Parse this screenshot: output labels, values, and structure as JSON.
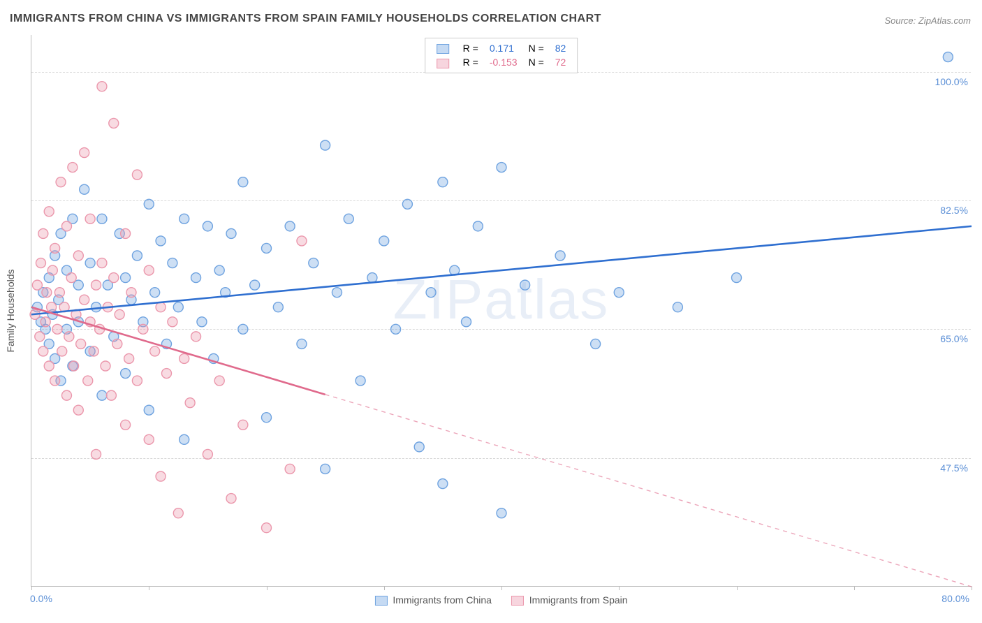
{
  "title": "IMMIGRANTS FROM CHINA VS IMMIGRANTS FROM SPAIN FAMILY HOUSEHOLDS CORRELATION CHART",
  "source": "Source: ZipAtlas.com",
  "watermark": "ZIPatlas",
  "chart": {
    "type": "scatter",
    "y_axis_title": "Family Households",
    "xlim": [
      0,
      80
    ],
    "ylim": [
      30,
      105
    ],
    "x_ticks": [
      0,
      10,
      20,
      30,
      40,
      50,
      60,
      70,
      80
    ],
    "x_tick_labels_shown": {
      "0": "0.0%",
      "80": "80.0%"
    },
    "y_gridlines": [
      47.5,
      65.0,
      82.5,
      100.0
    ],
    "y_tick_labels": [
      "47.5%",
      "65.0%",
      "82.5%",
      "100.0%"
    ],
    "background_color": "#ffffff",
    "grid_color": "#d8d8d8",
    "axis_color": "#bbbbbb",
    "tick_label_color": "#5b8fd6",
    "marker_radius": 7,
    "marker_stroke_width": 1.4,
    "marker_fill_opacity": 0.35,
    "trend_line_width": 2.6,
    "series": [
      {
        "name": "Immigrants from China",
        "color": "#6fa3e0",
        "line_color": "#2f6fd0",
        "R_label": "R =",
        "R": "0.171",
        "N_label": "N =",
        "N": "82",
        "trend": {
          "x1": 0,
          "y1": 67,
          "x2": 80,
          "y2": 79,
          "solid_until_x": 80
        },
        "points": [
          [
            0.5,
            68
          ],
          [
            0.8,
            66
          ],
          [
            1,
            70
          ],
          [
            1.2,
            65
          ],
          [
            1.5,
            72
          ],
          [
            1.5,
            63
          ],
          [
            1.8,
            67
          ],
          [
            2,
            75
          ],
          [
            2,
            61
          ],
          [
            2.3,
            69
          ],
          [
            2.5,
            78
          ],
          [
            2.5,
            58
          ],
          [
            3,
            73
          ],
          [
            3,
            65
          ],
          [
            3.5,
            80
          ],
          [
            3.5,
            60
          ],
          [
            4,
            71
          ],
          [
            4,
            66
          ],
          [
            4.5,
            84
          ],
          [
            5,
            62
          ],
          [
            5,
            74
          ],
          [
            5.5,
            68
          ],
          [
            6,
            80
          ],
          [
            6,
            56
          ],
          [
            6.5,
            71
          ],
          [
            7,
            64
          ],
          [
            7.5,
            78
          ],
          [
            8,
            72
          ],
          [
            8,
            59
          ],
          [
            8.5,
            69
          ],
          [
            9,
            75
          ],
          [
            9.5,
            66
          ],
          [
            10,
            82
          ],
          [
            10,
            54
          ],
          [
            10.5,
            70
          ],
          [
            11,
            77
          ],
          [
            11.5,
            63
          ],
          [
            12,
            74
          ],
          [
            12.5,
            68
          ],
          [
            13,
            80
          ],
          [
            13,
            50
          ],
          [
            14,
            72
          ],
          [
            14.5,
            66
          ],
          [
            15,
            79
          ],
          [
            15.5,
            61
          ],
          [
            16,
            73
          ],
          [
            16.5,
            70
          ],
          [
            17,
            78
          ],
          [
            18,
            65
          ],
          [
            18,
            85
          ],
          [
            19,
            71
          ],
          [
            20,
            76
          ],
          [
            20,
            53
          ],
          [
            21,
            68
          ],
          [
            22,
            79
          ],
          [
            23,
            63
          ],
          [
            24,
            74
          ],
          [
            25,
            90
          ],
          [
            25,
            46
          ],
          [
            26,
            70
          ],
          [
            27,
            80
          ],
          [
            28,
            58
          ],
          [
            29,
            72
          ],
          [
            30,
            77
          ],
          [
            31,
            65
          ],
          [
            32,
            82
          ],
          [
            33,
            49
          ],
          [
            34,
            70
          ],
          [
            35,
            85
          ],
          [
            35,
            44
          ],
          [
            36,
            73
          ],
          [
            37,
            66
          ],
          [
            38,
            79
          ],
          [
            40,
            87
          ],
          [
            40,
            40
          ],
          [
            42,
            71
          ],
          [
            45,
            75
          ],
          [
            48,
            63
          ],
          [
            50,
            70
          ],
          [
            55,
            68
          ],
          [
            60,
            72
          ],
          [
            78,
            102
          ]
        ]
      },
      {
        "name": "Immigrants from Spain",
        "color": "#eb97ac",
        "line_color": "#e06a8c",
        "R_label": "R =",
        "R": "-0.153",
        "N_label": "N =",
        "N": "72",
        "trend": {
          "x1": 0,
          "y1": 68,
          "x2": 80,
          "y2": 30,
          "solid_until_x": 25
        },
        "points": [
          [
            0.3,
            67
          ],
          [
            0.5,
            71
          ],
          [
            0.7,
            64
          ],
          [
            0.8,
            74
          ],
          [
            1,
            62
          ],
          [
            1,
            78
          ],
          [
            1.2,
            66
          ],
          [
            1.3,
            70
          ],
          [
            1.5,
            60
          ],
          [
            1.5,
            81
          ],
          [
            1.7,
            68
          ],
          [
            1.8,
            73
          ],
          [
            2,
            58
          ],
          [
            2,
            76
          ],
          [
            2.2,
            65
          ],
          [
            2.4,
            70
          ],
          [
            2.5,
            85
          ],
          [
            2.6,
            62
          ],
          [
            2.8,
            68
          ],
          [
            3,
            56
          ],
          [
            3,
            79
          ],
          [
            3.2,
            64
          ],
          [
            3.4,
            72
          ],
          [
            3.5,
            87
          ],
          [
            3.6,
            60
          ],
          [
            3.8,
            67
          ],
          [
            4,
            54
          ],
          [
            4,
            75
          ],
          [
            4.2,
            63
          ],
          [
            4.5,
            69
          ],
          [
            4.5,
            89
          ],
          [
            4.8,
            58
          ],
          [
            5,
            66
          ],
          [
            5,
            80
          ],
          [
            5.3,
            62
          ],
          [
            5.5,
            71
          ],
          [
            5.5,
            48
          ],
          [
            5.8,
            65
          ],
          [
            6,
            74
          ],
          [
            6,
            98
          ],
          [
            6.3,
            60
          ],
          [
            6.5,
            68
          ],
          [
            6.8,
            56
          ],
          [
            7,
            72
          ],
          [
            7,
            93
          ],
          [
            7.3,
            63
          ],
          [
            7.5,
            67
          ],
          [
            8,
            52
          ],
          [
            8,
            78
          ],
          [
            8.3,
            61
          ],
          [
            8.5,
            70
          ],
          [
            9,
            58
          ],
          [
            9,
            86
          ],
          [
            9.5,
            65
          ],
          [
            10,
            50
          ],
          [
            10,
            73
          ],
          [
            10.5,
            62
          ],
          [
            11,
            68
          ],
          [
            11,
            45
          ],
          [
            11.5,
            59
          ],
          [
            12,
            66
          ],
          [
            12.5,
            40
          ],
          [
            13,
            61
          ],
          [
            13.5,
            55
          ],
          [
            14,
            64
          ],
          [
            15,
            48
          ],
          [
            16,
            58
          ],
          [
            17,
            42
          ],
          [
            18,
            52
          ],
          [
            20,
            38
          ],
          [
            22,
            46
          ],
          [
            23,
            77
          ]
        ]
      }
    ]
  },
  "legend_bottom": {
    "item1": "Immigrants from China",
    "item2": "Immigrants from Spain"
  }
}
